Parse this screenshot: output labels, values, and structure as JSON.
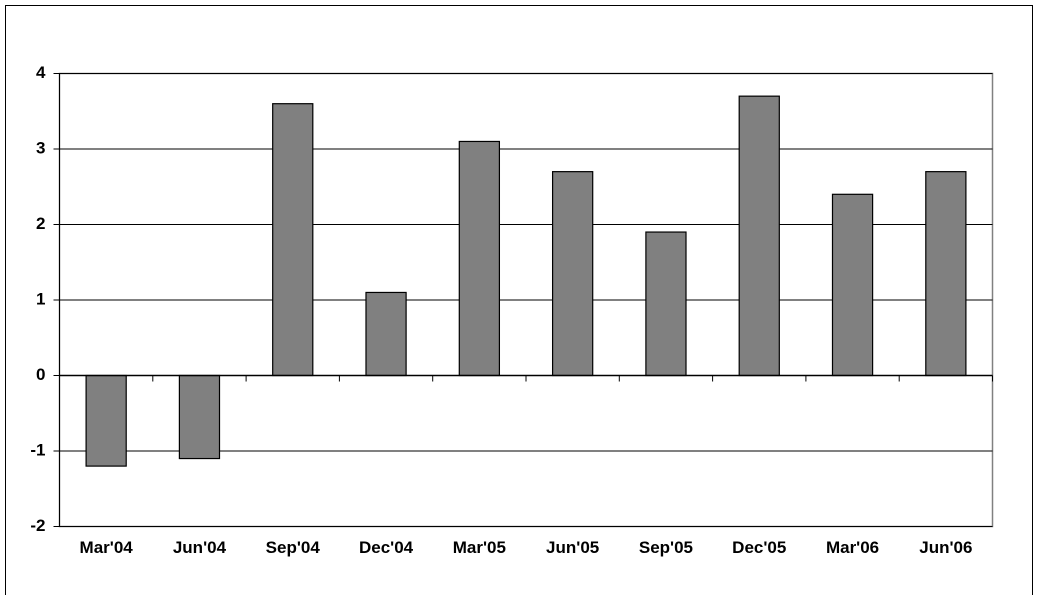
{
  "chart_data": {
    "type": "bar",
    "categories": [
      "Mar'04",
      "Jun'04",
      "Sep'04",
      "Dec'04",
      "Mar'05",
      "Jun'05",
      "Sep'05",
      "Dec'05",
      "Mar'06",
      "Jun'06"
    ],
    "values": [
      -1.2,
      -1.1,
      3.6,
      1.1,
      3.1,
      2.7,
      1.9,
      3.7,
      2.4,
      2.7
    ],
    "color": "#808080",
    "ylim": [
      -2,
      4
    ],
    "yticks": [
      -2,
      -1,
      0,
      1,
      2,
      3,
      4
    ],
    "grid": true
  }
}
